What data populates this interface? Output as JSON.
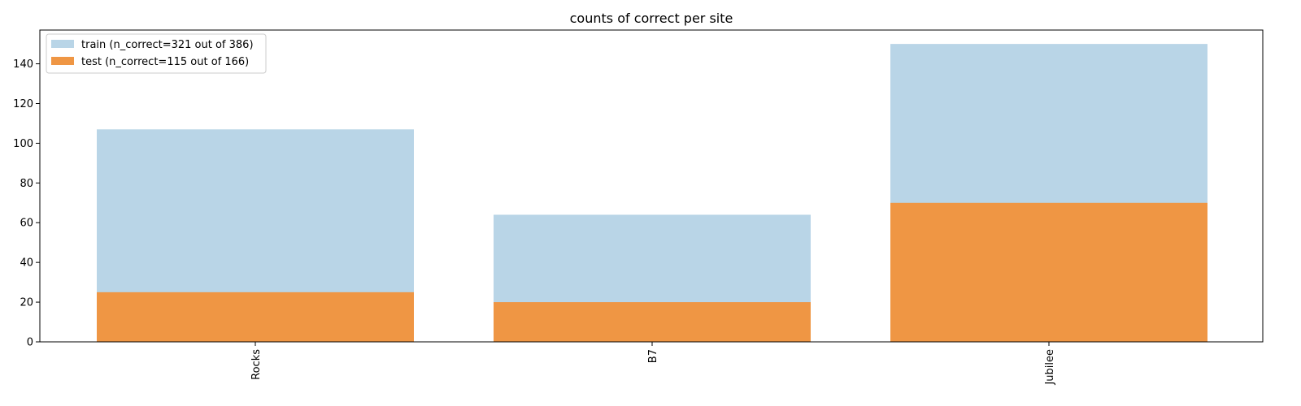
{
  "chart_data": {
    "type": "bar",
    "title": "counts of correct per site",
    "xlabel": "",
    "ylabel": "",
    "categories": [
      "Rocks",
      "B7",
      "Jubilee"
    ],
    "series": [
      {
        "name": "train (n_correct=321 out of 386)",
        "values": [
          107,
          64,
          150
        ],
        "color": "#b9d5e7"
      },
      {
        "name": "test (n_correct=115 out of 166)",
        "values": [
          25,
          20,
          70
        ],
        "color": "#ef9644"
      }
    ],
    "ylim": [
      0,
      157
    ],
    "yticks": [
      0,
      20,
      40,
      60,
      80,
      100,
      120,
      140
    ],
    "grid": false,
    "legend_position": "top-left",
    "tick_label_rotation": "vertical"
  }
}
